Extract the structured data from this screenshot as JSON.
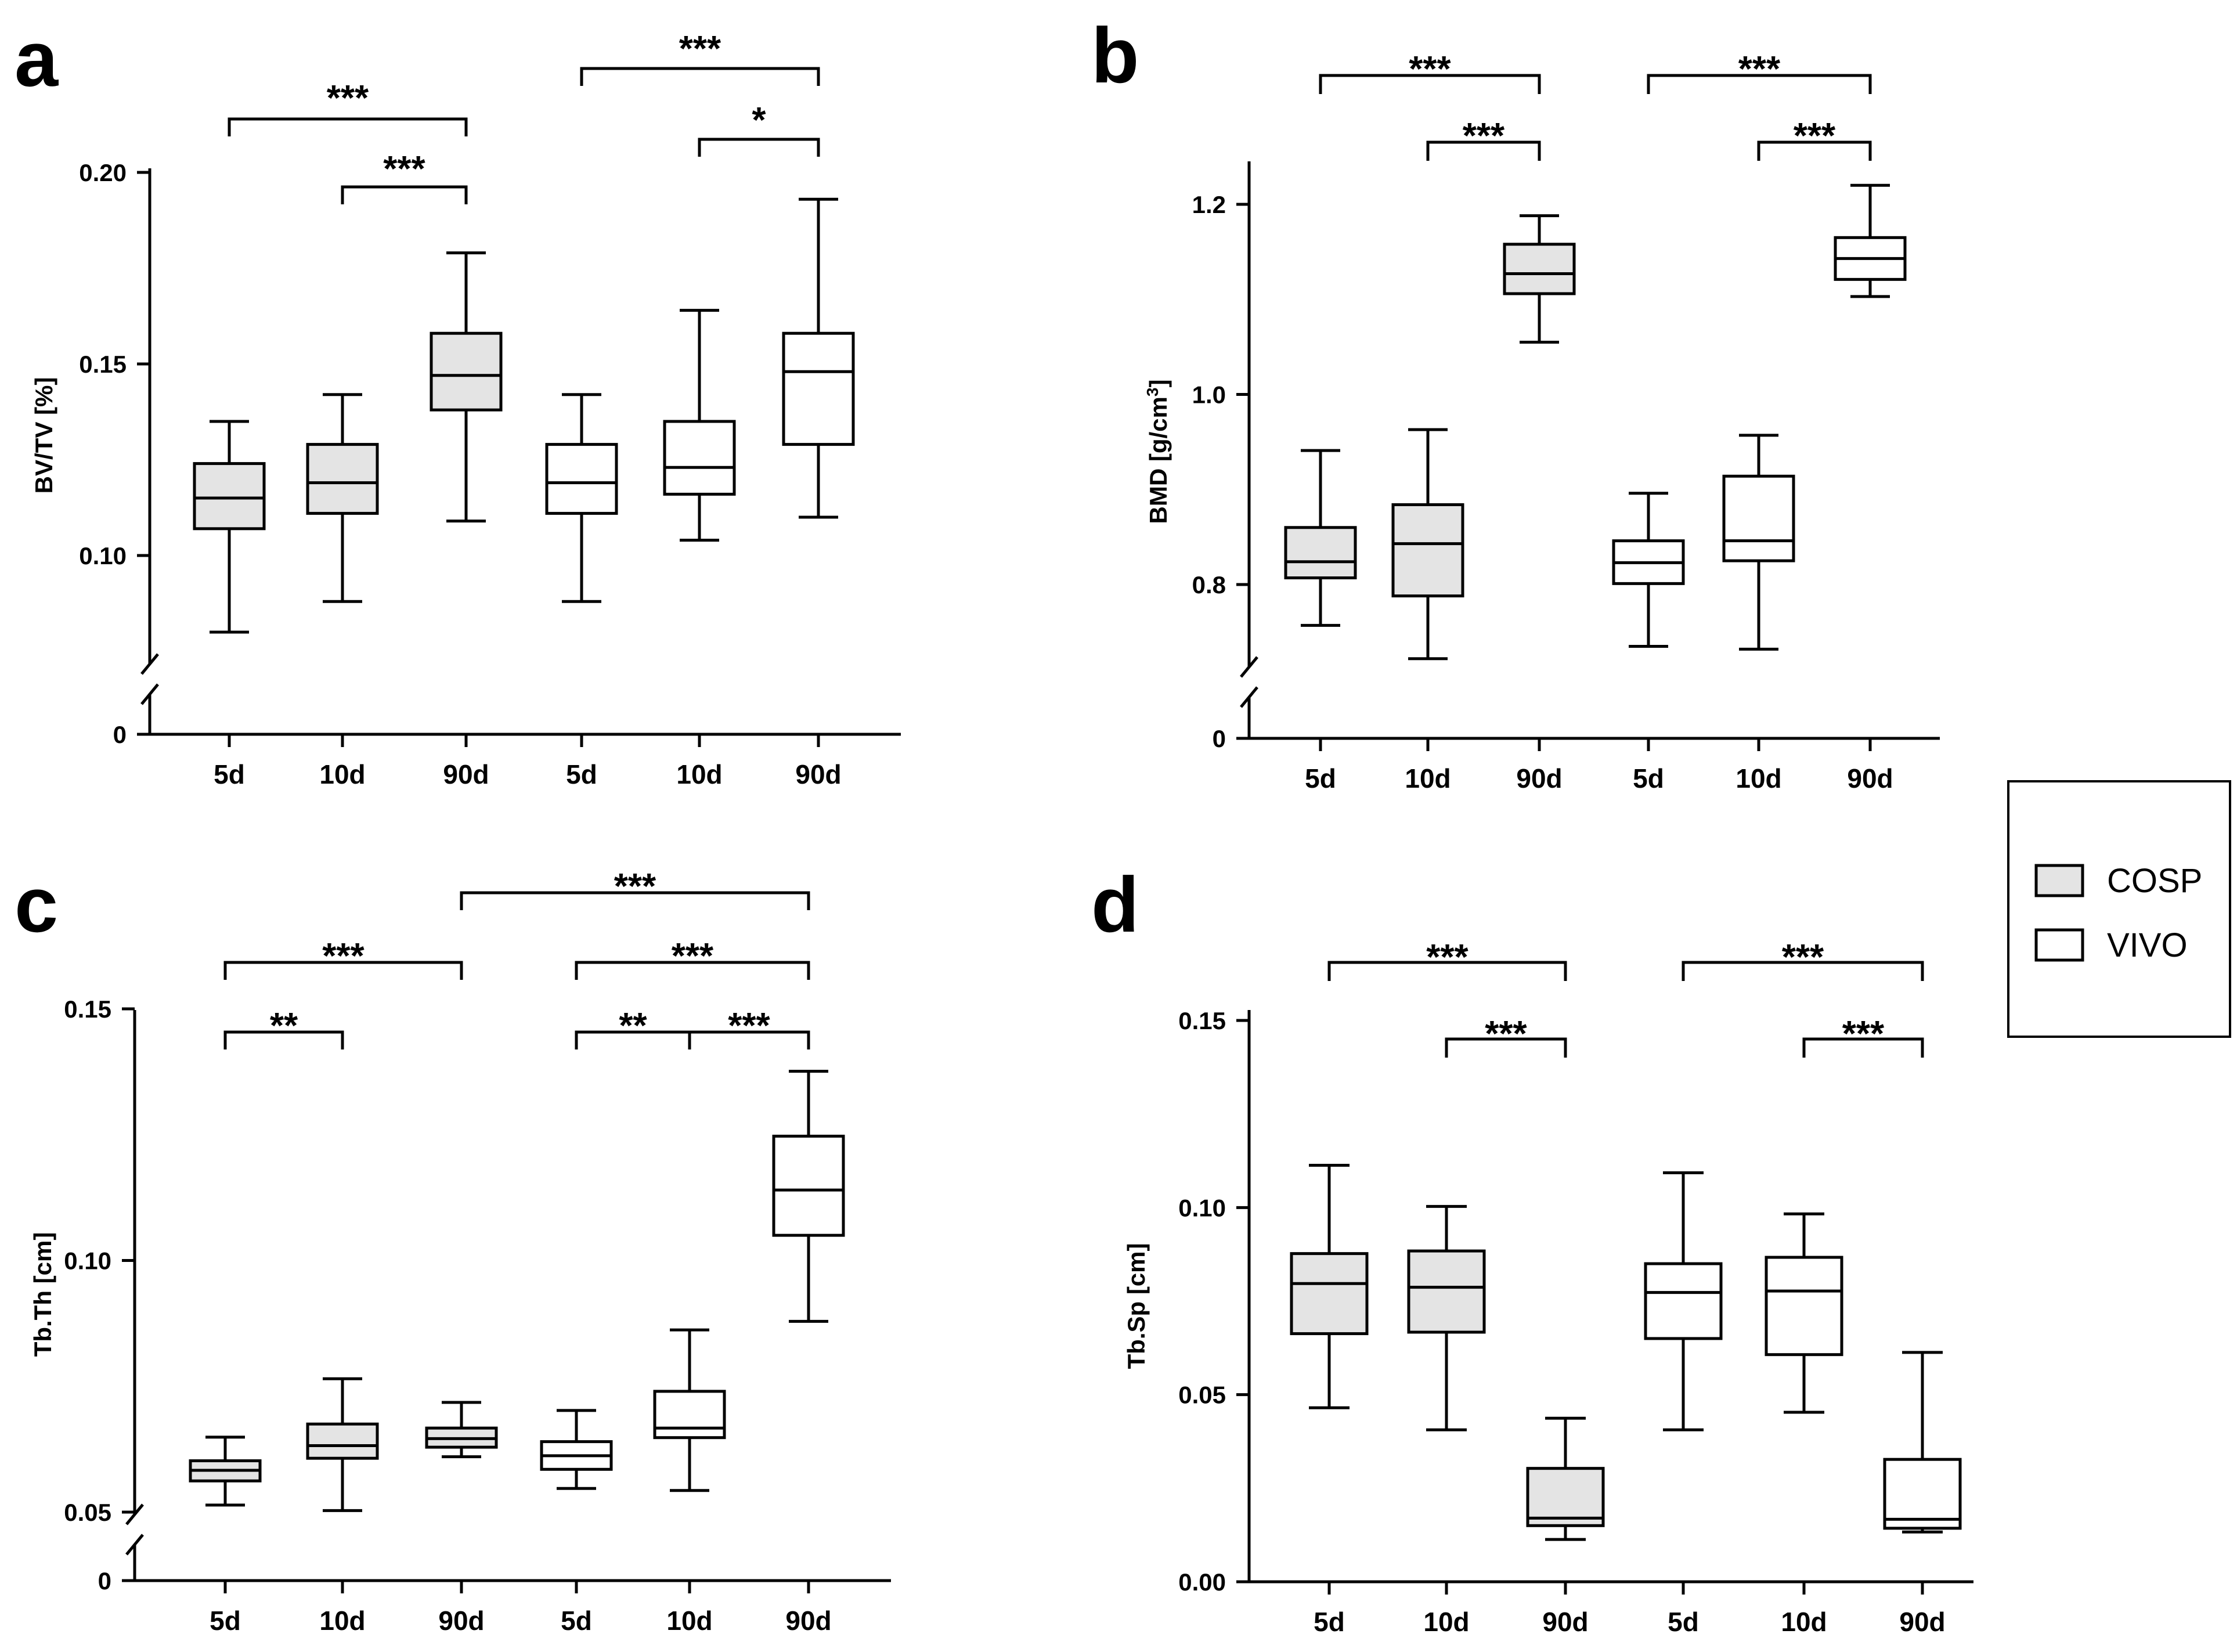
{
  "legend": {
    "items": [
      {
        "label": "COSP",
        "color": "#e4e4e4"
      },
      {
        "label": "VIVO",
        "color": "#ffffff"
      }
    ]
  },
  "colors": {
    "stroke": "#000000",
    "cosp_fill": "#e4e4e4",
    "vivo_fill": "#ffffff"
  },
  "chart_data": [
    {
      "panel": "a",
      "type": "box",
      "ylabel": "BV/TV [%]",
      "categories": [
        "5d",
        "10d",
        "90d",
        "5d",
        "10d",
        "90d"
      ],
      "groups": [
        "COSP",
        "COSP",
        "COSP",
        "VIVO",
        "VIVO",
        "VIVO"
      ],
      "ylim": [
        0.08,
        0.205
      ],
      "axis_break": true,
      "yticks": [
        "0.10",
        "0.15",
        "0.20"
      ],
      "zero_label": "0",
      "boxes": [
        {
          "min": 0.08,
          "q1": 0.107,
          "median": 0.115,
          "q3": 0.124,
          "max": 0.135
        },
        {
          "min": 0.088,
          "q1": 0.111,
          "median": 0.119,
          "q3": 0.129,
          "max": 0.142
        },
        {
          "min": 0.109,
          "q1": 0.138,
          "median": 0.147,
          "q3": 0.158,
          "max": 0.179
        },
        {
          "min": 0.088,
          "q1": 0.111,
          "median": 0.119,
          "q3": 0.129,
          "max": 0.142
        },
        {
          "min": 0.104,
          "q1": 0.116,
          "median": 0.123,
          "q3": 0.135,
          "max": 0.164
        },
        {
          "min": 0.11,
          "q1": 0.129,
          "median": 0.148,
          "q3": 0.158,
          "max": 0.193
        }
      ],
      "significance": [
        {
          "from": 0,
          "to": 2,
          "label": "***"
        },
        {
          "from": 1,
          "to": 2,
          "label": "***"
        },
        {
          "from": 3,
          "to": 5,
          "label": "***"
        },
        {
          "from": 4,
          "to": 5,
          "label": "*"
        }
      ]
    },
    {
      "panel": "b",
      "type": "box",
      "ylabel": "BMD [g/cm",
      "ylabel_sup": "3",
      "ylabel_end": "]",
      "categories": [
        "5d",
        "10d",
        "90d",
        "5d",
        "10d",
        "90d"
      ],
      "groups": [
        "COSP",
        "COSP",
        "COSP",
        "VIVO",
        "VIVO",
        "VIVO"
      ],
      "ylim": [
        0.72,
        1.24
      ],
      "axis_break": true,
      "yticks": [
        "0.8",
        "1.0",
        "1.2"
      ],
      "zero_label": "0",
      "boxes": [
        {
          "min": 0.757,
          "q1": 0.807,
          "median": 0.824,
          "q3": 0.86,
          "max": 0.941
        },
        {
          "min": 0.722,
          "q1": 0.788,
          "median": 0.843,
          "q3": 0.884,
          "max": 0.963
        },
        {
          "min": 1.055,
          "q1": 1.106,
          "median": 1.127,
          "q3": 1.158,
          "max": 1.188
        },
        {
          "min": 0.735,
          "q1": 0.801,
          "median": 0.823,
          "q3": 0.846,
          "max": 0.896
        },
        {
          "min": 0.732,
          "q1": 0.825,
          "median": 0.846,
          "q3": 0.914,
          "max": 0.957
        },
        {
          "min": 1.103,
          "q1": 1.121,
          "median": 1.143,
          "q3": 1.165,
          "max": 1.22
        }
      ],
      "significance": [
        {
          "from": 0,
          "to": 2,
          "label": "***"
        },
        {
          "from": 1,
          "to": 2,
          "label": "***"
        },
        {
          "from": 3,
          "to": 5,
          "label": "***"
        },
        {
          "from": 4,
          "to": 5,
          "label": "***"
        }
      ]
    },
    {
      "panel": "c",
      "type": "box",
      "ylabel": "Tb.Th [cm]",
      "categories": [
        "5d",
        "10d",
        "90d",
        "5d",
        "10d",
        "90d"
      ],
      "groups": [
        "COSP",
        "COSP",
        "COSP",
        "VIVO",
        "VIVO",
        "VIVO"
      ],
      "ylim": [
        0.05,
        0.15
      ],
      "axis_break": true,
      "yticks": [
        "0.05",
        "0.10",
        "0.15"
      ],
      "zero_label": "0",
      "boxes": [
        {
          "min": 0.0514,
          "q1": 0.0562,
          "median": 0.0583,
          "q3": 0.0602,
          "max": 0.0649
        },
        {
          "min": 0.0503,
          "q1": 0.0607,
          "median": 0.0632,
          "q3": 0.0675,
          "max": 0.0765
        },
        {
          "min": 0.061,
          "q1": 0.0629,
          "median": 0.0646,
          "q3": 0.0667,
          "max": 0.0718
        },
        {
          "min": 0.0547,
          "q1": 0.0585,
          "median": 0.0612,
          "q3": 0.064,
          "max": 0.0702
        },
        {
          "min": 0.0543,
          "q1": 0.0648,
          "median": 0.0667,
          "q3": 0.074,
          "max": 0.0862
        },
        {
          "min": 0.0879,
          "q1": 0.105,
          "median": 0.114,
          "q3": 0.1247,
          "max": 0.1376
        }
      ],
      "significance": [
        {
          "from": 0,
          "to": 1,
          "label": "**"
        },
        {
          "from": 0,
          "to": 2,
          "label": "***"
        },
        {
          "from": 2,
          "to": 5,
          "label": "***"
        },
        {
          "from": 3,
          "to": 5,
          "label": "***"
        },
        {
          "from": 3,
          "to": 4,
          "label": "**"
        },
        {
          "from": 4,
          "to": 5,
          "label": "***"
        }
      ]
    },
    {
      "panel": "d",
      "type": "box",
      "ylabel": "Tb.Sp [cm]",
      "categories": [
        "5d",
        "10d",
        "90d",
        "5d",
        "10d",
        "90d"
      ],
      "groups": [
        "COSP",
        "COSP",
        "COSP",
        "VIVO",
        "VIVO",
        "VIVO"
      ],
      "ylim": [
        0,
        0.15
      ],
      "axis_break": false,
      "yticks": [
        "0.00",
        "0.05",
        "0.10",
        "0.15"
      ],
      "boxes": [
        {
          "min": 0.0465,
          "q1": 0.0663,
          "median": 0.0797,
          "q3": 0.0877,
          "max": 0.1113
        },
        {
          "min": 0.0406,
          "q1": 0.0667,
          "median": 0.0787,
          "q3": 0.0884,
          "max": 0.1003
        },
        {
          "min": 0.0113,
          "q1": 0.015,
          "median": 0.017,
          "q3": 0.0303,
          "max": 0.0437
        },
        {
          "min": 0.0406,
          "q1": 0.065,
          "median": 0.0773,
          "q3": 0.085,
          "max": 0.1093
        },
        {
          "min": 0.0453,
          "q1": 0.0607,
          "median": 0.0777,
          "q3": 0.0867,
          "max": 0.0983
        },
        {
          "min": 0.0133,
          "q1": 0.0143,
          "median": 0.0167,
          "q3": 0.0327,
          "max": 0.0613
        }
      ],
      "significance": [
        {
          "from": 0,
          "to": 2,
          "label": "***"
        },
        {
          "from": 1,
          "to": 2,
          "label": "***"
        },
        {
          "from": 3,
          "to": 5,
          "label": "***"
        },
        {
          "from": 4,
          "to": 5,
          "label": "***"
        }
      ]
    }
  ]
}
